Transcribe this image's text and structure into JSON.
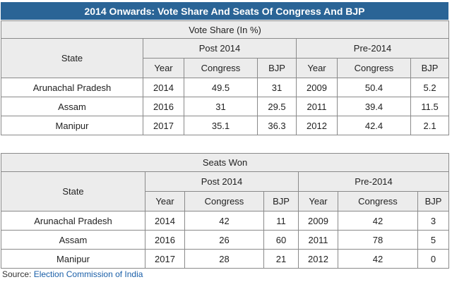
{
  "title": "2014 Onwards: Vote Share And Seats Of Congress And BJP",
  "vote_share": {
    "caption": "Vote Share (In %)",
    "state_header": "State",
    "group_post": "Post 2014",
    "group_pre": "Pre-2014",
    "col_year": "Year",
    "col_congress": "Congress",
    "col_bjp": "BJP",
    "rows": [
      {
        "state": "Arunachal Pradesh",
        "post_year": "2014",
        "post_congress": "49.5",
        "post_bjp": "31",
        "pre_year": "2009",
        "pre_congress": "50.4",
        "pre_bjp": "5.2"
      },
      {
        "state": "Assam",
        "post_year": "2016",
        "post_congress": "31",
        "post_bjp": "29.5",
        "pre_year": "2011",
        "pre_congress": "39.4",
        "pre_bjp": "11.5"
      },
      {
        "state": "Manipur",
        "post_year": "2017",
        "post_congress": "35.1",
        "post_bjp": "36.3",
        "pre_year": "2012",
        "pre_congress": "42.4",
        "pre_bjp": "2.1"
      }
    ]
  },
  "seats_won": {
    "caption": "Seats Won",
    "state_header": "State",
    "group_post": "Post 2014",
    "group_pre": "Pre-2014",
    "col_year": "Year",
    "col_congress": "Congress",
    "col_bjp": "BJP",
    "rows": [
      {
        "state": "Arunachal Pradesh",
        "post_year": "2014",
        "post_congress": "42",
        "post_bjp": "11",
        "pre_year": "2009",
        "pre_congress": "42",
        "pre_bjp": "3"
      },
      {
        "state": "Assam",
        "post_year": "2016",
        "post_congress": "26",
        "post_bjp": "60",
        "pre_year": "2011",
        "pre_congress": "78",
        "pre_bjp": "5"
      },
      {
        "state": "Manipur",
        "post_year": "2017",
        "post_congress": "28",
        "post_bjp": "21",
        "pre_year": "2012",
        "pre_congress": "42",
        "pre_bjp": "0"
      }
    ]
  },
  "source": {
    "label": "Source:",
    "link_text": "Election Commission of India"
  }
}
